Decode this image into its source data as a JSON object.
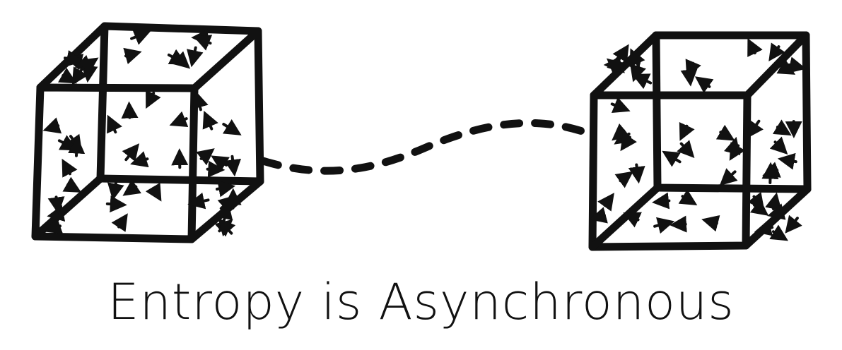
{
  "caption": "Entropy is Asynchronous",
  "colors": {
    "ink": "#111111",
    "background": "#ffffff"
  },
  "figures": [
    {
      "name": "left-cube",
      "glyph": "arrow-particles"
    },
    {
      "name": "right-cube",
      "glyph": "arrow-particles"
    }
  ],
  "connector": {
    "style": "dashed-curve"
  }
}
